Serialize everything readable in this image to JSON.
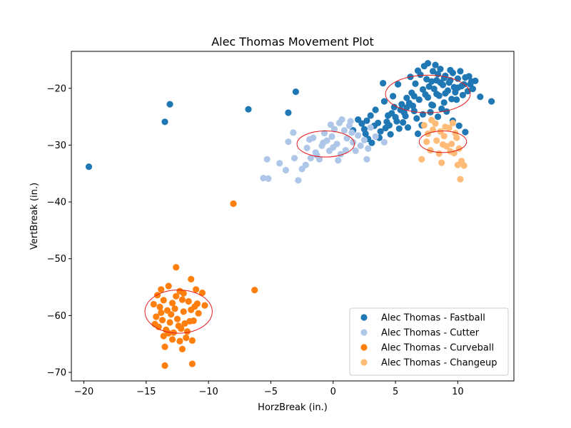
{
  "chart_data": {
    "type": "scatter",
    "title": "Alec Thomas Movement Plot",
    "xlabel": "HorzBreak (in.)",
    "ylabel": "VertBreak (in.)",
    "xlim": [
      -21,
      14.5
    ],
    "ylim": [
      -71.5,
      -13.5
    ],
    "xticks": [
      -20,
      -15,
      -10,
      -5,
      0,
      5,
      10
    ],
    "yticks": [
      -70,
      -60,
      -50,
      -40,
      -30,
      -20
    ],
    "grid": false,
    "legend_position": "lower-right",
    "series": [
      {
        "name": "Alec Thomas - Fastball",
        "color": "#1f77b4",
        "points": [
          [
            -19.6,
            -33.8
          ],
          [
            -13.5,
            -25.9
          ],
          [
            -13.1,
            -22.8
          ],
          [
            -6.8,
            -23.7
          ],
          [
            -3.6,
            -24.3
          ],
          [
            -3.0,
            -20.6
          ],
          [
            2.0,
            -25.5
          ],
          [
            2.5,
            -27.2
          ],
          [
            3.0,
            -24.8
          ],
          [
            3.3,
            -26.6
          ],
          [
            2.8,
            -28.9
          ],
          [
            3.8,
            -27.6
          ],
          [
            4.3,
            -25.9
          ],
          [
            4.7,
            -24.4
          ],
          [
            4.1,
            -22.3
          ],
          [
            4.5,
            -26.5
          ],
          [
            5.0,
            -25.1
          ],
          [
            5.4,
            -23.8
          ],
          [
            5.8,
            -24.9
          ],
          [
            6.1,
            -22.6
          ],
          [
            5.3,
            -27.1
          ],
          [
            4.9,
            -23.3
          ],
          [
            3.6,
            -26.1
          ],
          [
            3.1,
            -29.6
          ],
          [
            4.6,
            -28.1
          ],
          [
            5.6,
            -26.0
          ],
          [
            6.5,
            -24.0
          ],
          [
            6.9,
            -22.0
          ],
          [
            7.2,
            -24.6
          ],
          [
            6.3,
            -20.8
          ],
          [
            5.9,
            -21.7
          ],
          [
            6.6,
            -19.2
          ],
          [
            7.0,
            -17.6
          ],
          [
            7.3,
            -16.1
          ],
          [
            7.6,
            -15.6
          ],
          [
            8.0,
            -17.0
          ],
          [
            8.3,
            -18.6
          ],
          [
            8.6,
            -16.6
          ],
          [
            9.0,
            -17.8
          ],
          [
            9.3,
            -19.0
          ],
          [
            9.6,
            -17.3
          ],
          [
            10.0,
            -18.3
          ],
          [
            10.3,
            -19.6
          ],
          [
            10.6,
            -18.1
          ],
          [
            11.0,
            -19.3
          ],
          [
            11.4,
            -18.7
          ],
          [
            11.8,
            -21.5
          ],
          [
            12.7,
            -22.3
          ],
          [
            8.1,
            -20.1
          ],
          [
            8.5,
            -21.3
          ],
          [
            8.9,
            -22.5
          ],
          [
            9.2,
            -20.4
          ],
          [
            9.5,
            -21.9
          ],
          [
            9.8,
            -20.7
          ],
          [
            7.7,
            -19.7
          ],
          [
            7.4,
            -21.1
          ],
          [
            7.9,
            -22.9
          ],
          [
            8.7,
            -23.6
          ],
          [
            9.9,
            -22.0
          ],
          [
            10.4,
            -21.2
          ],
          [
            10.8,
            -20.5
          ],
          [
            10.1,
            -26.6
          ],
          [
            10.6,
            -27.7
          ],
          [
            9.6,
            -25.7
          ],
          [
            8.4,
            -25.0
          ],
          [
            7.1,
            -26.5
          ],
          [
            6.8,
            -28.0
          ],
          [
            6.0,
            -26.9
          ],
          [
            6.2,
            -18.0
          ],
          [
            6.8,
            -16.9
          ],
          [
            7.5,
            -18.4
          ],
          [
            8.2,
            -15.9
          ],
          [
            8.8,
            -19.4
          ],
          [
            9.4,
            -16.8
          ],
          [
            10.2,
            -17.0
          ],
          [
            10.9,
            -17.9
          ],
          [
            11.2,
            -20.1
          ],
          [
            5.2,
            -19.3
          ],
          [
            4.8,
            -21.4
          ],
          [
            4.0,
            -19.1
          ],
          [
            5.5,
            -22.8
          ],
          [
            6.4,
            -23.1
          ],
          [
            7.8,
            -24.2
          ],
          [
            8.0,
            -23.0
          ],
          [
            9.1,
            -24.1
          ],
          [
            2.3,
            -26.2
          ],
          [
            1.6,
            -27.4
          ],
          [
            3.4,
            -23.8
          ],
          [
            2.7,
            -25.7
          ],
          [
            4.4,
            -24.8
          ],
          [
            5.1,
            -25.8
          ],
          [
            5.7,
            -24.3
          ],
          [
            6.7,
            -25.3
          ],
          [
            7.6,
            -21.6
          ],
          [
            8.3,
            -21.0
          ],
          [
            9.0,
            -20.9
          ],
          [
            9.7,
            -19.8
          ],
          [
            10.5,
            -19.3
          ],
          [
            11.1,
            -18.8
          ],
          [
            7.2,
            -20.2
          ],
          [
            6.5,
            -21.4
          ],
          [
            5.9,
            -23.4
          ],
          [
            4.2,
            -27.0
          ],
          [
            3.7,
            -28.7
          ],
          [
            2.6,
            -28.0
          ],
          [
            8.6,
            -19.0
          ],
          [
            8.9,
            -18.2
          ],
          [
            9.4,
            -18.6
          ],
          [
            10.0,
            -19.9
          ],
          [
            7.9,
            -18.8
          ],
          [
            8.4,
            -17.5
          ]
        ]
      },
      {
        "name": "Alec Thomas - Cutter",
        "color": "#aec7e8",
        "points": [
          [
            -5.6,
            -35.8
          ],
          [
            -5.2,
            -35.9
          ],
          [
            -5.3,
            -32.5
          ],
          [
            -4.3,
            -33.2
          ],
          [
            -3.8,
            -34.4
          ],
          [
            -3.6,
            -29.4
          ],
          [
            -3.2,
            -27.8
          ],
          [
            -3.1,
            -32.3
          ],
          [
            -2.8,
            -36.2
          ],
          [
            -2.5,
            -34.2
          ],
          [
            -2.1,
            -30.5
          ],
          [
            -1.8,
            -32.3
          ],
          [
            -1.6,
            -28.7
          ],
          [
            -1.4,
            -31.3
          ],
          [
            -1.1,
            -32.5
          ],
          [
            -0.9,
            -30.1
          ],
          [
            -0.7,
            -27.9
          ],
          [
            -0.5,
            -29.2
          ],
          [
            -0.3,
            -31.0
          ],
          [
            -0.1,
            -28.5
          ],
          [
            0.1,
            -27.2
          ],
          [
            0.3,
            -29.8
          ],
          [
            0.5,
            -26.1
          ],
          [
            0.7,
            -25.5
          ],
          [
            0.9,
            -27.4
          ],
          [
            1.1,
            -28.8
          ],
          [
            1.3,
            -26.6
          ],
          [
            1.6,
            -29.5
          ],
          [
            1.8,
            -31.0
          ],
          [
            2.0,
            -28.3
          ],
          [
            2.2,
            -30.1
          ],
          [
            2.5,
            -29.1
          ],
          [
            2.8,
            -30.6
          ],
          [
            3.0,
            -26.9
          ],
          [
            3.4,
            -28.5
          ],
          [
            4.1,
            -29.5
          ],
          [
            -2.2,
            -33.5
          ],
          [
            -1.3,
            -31.8
          ],
          [
            -0.8,
            -29.6
          ],
          [
            0.0,
            -30.4
          ],
          [
            0.6,
            -31.6
          ],
          [
            1.5,
            -27.8
          ],
          [
            -0.2,
            -26.4
          ],
          [
            1.0,
            -30.9
          ],
          [
            2.7,
            -32.5
          ],
          [
            -1.9,
            -29.0
          ],
          [
            0.4,
            -32.7
          ],
          [
            1.4,
            -25.8
          ]
        ]
      },
      {
        "name": "Alec Thomas - Curveball",
        "color": "#ff7f0e",
        "points": [
          [
            -8.0,
            -40.3
          ],
          [
            -6.3,
            -55.5
          ],
          [
            -13.5,
            -68.8
          ],
          [
            -11.3,
            -68.5
          ],
          [
            -12.6,
            -51.5
          ],
          [
            -11.4,
            -53.6
          ],
          [
            -13.8,
            -55.4
          ],
          [
            -13.2,
            -54.8
          ],
          [
            -12.3,
            -55.7
          ],
          [
            -11.0,
            -55.4
          ],
          [
            -10.5,
            -56.0
          ],
          [
            -14.1,
            -56.4
          ],
          [
            -13.6,
            -57.3
          ],
          [
            -12.9,
            -57.8
          ],
          [
            -12.1,
            -57.2
          ],
          [
            -11.6,
            -57.5
          ],
          [
            -10.9,
            -57.9
          ],
          [
            -14.4,
            -58.0
          ],
          [
            -13.9,
            -58.5
          ],
          [
            -13.3,
            -59.1
          ],
          [
            -12.7,
            -58.8
          ],
          [
            -12.0,
            -59.3
          ],
          [
            -11.4,
            -59.0
          ],
          [
            -10.8,
            -59.6
          ],
          [
            -10.3,
            -58.2
          ],
          [
            -14.2,
            -60.2
          ],
          [
            -13.7,
            -60.8
          ],
          [
            -13.1,
            -61.2
          ],
          [
            -12.5,
            -60.6
          ],
          [
            -11.9,
            -61.4
          ],
          [
            -11.2,
            -60.9
          ],
          [
            -14.0,
            -62.0
          ],
          [
            -13.4,
            -62.5
          ],
          [
            -12.8,
            -63.0
          ],
          [
            -12.2,
            -62.3
          ],
          [
            -11.7,
            -62.8
          ],
          [
            -13.6,
            -63.6
          ],
          [
            -12.9,
            -64.2
          ],
          [
            -12.3,
            -64.5
          ],
          [
            -11.8,
            -63.9
          ],
          [
            -11.3,
            -64.4
          ],
          [
            -13.5,
            -65.5
          ],
          [
            -12.1,
            -65.9
          ],
          [
            -14.3,
            -61.5
          ],
          [
            -11.1,
            -58.4
          ],
          [
            -12.6,
            -56.6
          ],
          [
            -13.0,
            -59.8
          ],
          [
            -12.4,
            -61.8
          ],
          [
            -11.5,
            -61.0
          ],
          [
            -13.8,
            -59.5
          ],
          [
            -12.0,
            -56.1
          ],
          [
            -13.2,
            -63.1
          ]
        ]
      },
      {
        "name": "Alec Thomas - Changeup",
        "color": "#ffbb78",
        "points": [
          [
            7.1,
            -32.5
          ],
          [
            7.3,
            -26.5
          ],
          [
            7.6,
            -28.0
          ],
          [
            7.8,
            -30.9
          ],
          [
            8.0,
            -27.3
          ],
          [
            8.3,
            -29.2
          ],
          [
            8.5,
            -31.5
          ],
          [
            8.7,
            -33.1
          ],
          [
            8.9,
            -28.4
          ],
          [
            9.1,
            -30.2
          ],
          [
            9.3,
            -27.0
          ],
          [
            9.5,
            -29.8
          ],
          [
            9.7,
            -31.4
          ],
          [
            9.9,
            -28.7
          ],
          [
            10.1,
            -30.6
          ],
          [
            10.3,
            -32.8
          ],
          [
            10.5,
            -33.6
          ],
          [
            10.2,
            -36.0
          ],
          [
            9.8,
            -27.9
          ],
          [
            9.4,
            -31.1
          ],
          [
            8.8,
            -29.9
          ],
          [
            8.2,
            -26.2
          ],
          [
            7.9,
            -25.6
          ],
          [
            9.0,
            -26.8
          ],
          [
            10.0,
            -33.5
          ],
          [
            7.5,
            -29.4
          ],
          [
            8.6,
            -27.6
          ],
          [
            9.6,
            -26.1
          ]
        ]
      }
    ],
    "ellipses": [
      {
        "color": "#e41a1c",
        "center": [
          7.6,
          -21.0
        ],
        "width": 6.8,
        "height": 6.6
      },
      {
        "color": "#e41a1c",
        "center": [
          -0.6,
          -29.8
        ],
        "width": 4.6,
        "height": 4.6
      },
      {
        "color": "#e41a1c",
        "center": [
          8.8,
          -29.4
        ],
        "width": 3.8,
        "height": 3.8
      },
      {
        "color": "#e41a1c",
        "center": [
          -12.4,
          -59.3
        ],
        "width": 5.4,
        "height": 7.6
      }
    ]
  }
}
